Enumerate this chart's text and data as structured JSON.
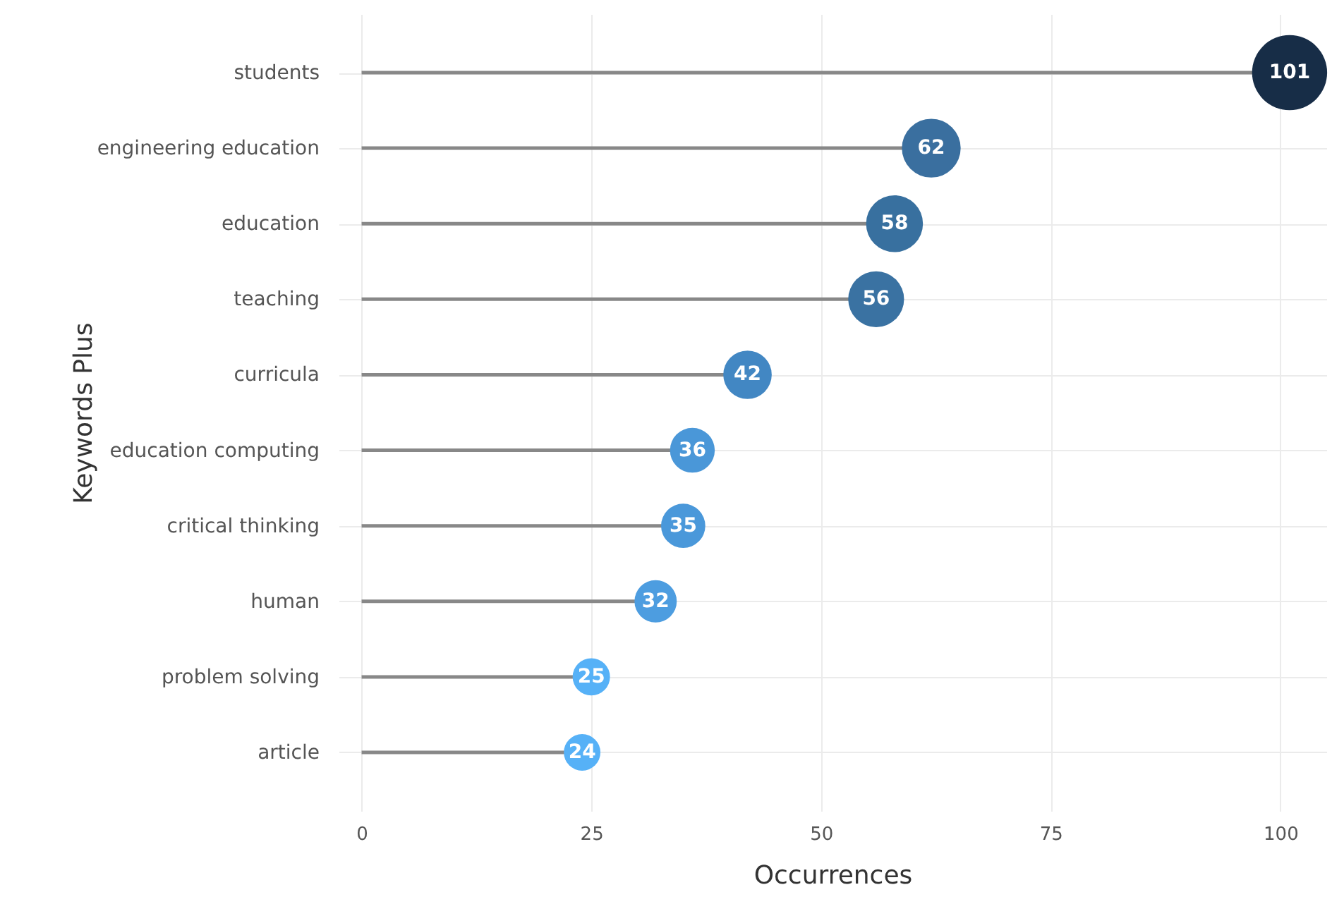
{
  "chart_data": {
    "type": "lollipop",
    "orientation": "horizontal",
    "xlabel": "Occurrences",
    "ylabel": "Keywords Plus",
    "categories": [
      "students",
      "engineering education",
      "education",
      "teaching",
      "curricula",
      "education computing",
      "critical thinking",
      "human",
      "problem solving",
      "article"
    ],
    "values": [
      101,
      62,
      58,
      56,
      42,
      36,
      35,
      32,
      25,
      24
    ],
    "sizes": [
      1,
      0.614,
      0.574,
      0.554,
      0.416,
      0.356,
      0.347,
      0.317,
      0.248,
      0.238
    ],
    "colors": [
      "#172d47",
      "#3a6f9f",
      "#38709f",
      "#3a72a2",
      "#4287c3",
      "#4a97d8",
      "#4a98da",
      "#4d9de0",
      "#56b1f7",
      "#56b1f7"
    ],
    "xlim": [
      -2.5,
      105
    ],
    "xticks": [
      0,
      25,
      50,
      75,
      100
    ],
    "grid": true,
    "data_labels": true
  }
}
